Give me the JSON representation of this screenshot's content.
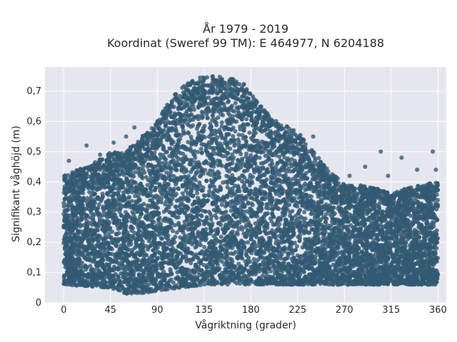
{
  "chart_data": {
    "type": "scatter",
    "title": "År 1979 - 2019",
    "subtitle": "Koordinat (Sweref 99 TM): E 464977, N 6204188",
    "xlabel": "Vågriktning (grader)",
    "ylabel": "Signifikant våghöjd (m)",
    "xlim": [
      -18,
      368
    ],
    "ylim": [
      0,
      0.78
    ],
    "x_ticks": [
      0,
      45,
      90,
      135,
      180,
      225,
      270,
      315,
      360
    ],
    "x_tick_labels": [
      "0",
      "45",
      "90",
      "135",
      "180",
      "225",
      "270",
      "315",
      "360"
    ],
    "y_ticks": [
      0,
      0.1,
      0.2,
      0.3,
      0.4,
      0.5,
      0.6,
      0.7
    ],
    "y_tick_labels": [
      "0",
      "0,1",
      "0,2",
      "0,3",
      "0,4",
      "0,5",
      "0,6",
      "0,7"
    ],
    "grid": true,
    "point_color": "#335a73",
    "background_color": "#e5e6ee",
    "series": [
      {
        "envelope_upper": [
          [
            0,
            0.42
          ],
          [
            20,
            0.45
          ],
          [
            45,
            0.5
          ],
          [
            60,
            0.5
          ],
          [
            75,
            0.55
          ],
          [
            90,
            0.6
          ],
          [
            100,
            0.66
          ],
          [
            110,
            0.7
          ],
          [
            120,
            0.73
          ],
          [
            135,
            0.75
          ],
          [
            150,
            0.75
          ],
          [
            165,
            0.74
          ],
          [
            175,
            0.72
          ],
          [
            185,
            0.67
          ],
          [
            195,
            0.63
          ],
          [
            210,
            0.59
          ],
          [
            225,
            0.57
          ],
          [
            240,
            0.5
          ],
          [
            255,
            0.44
          ],
          [
            270,
            0.39
          ],
          [
            285,
            0.39
          ],
          [
            300,
            0.38
          ],
          [
            315,
            0.36
          ],
          [
            330,
            0.38
          ],
          [
            345,
            0.39
          ],
          [
            360,
            0.4
          ]
        ],
        "envelope_lower": [
          [
            0,
            0.06
          ],
          [
            45,
            0.05
          ],
          [
            60,
            0.03
          ],
          [
            75,
            0.03
          ],
          [
            90,
            0.04
          ],
          [
            135,
            0.06
          ],
          [
            180,
            0.06
          ],
          [
            225,
            0.06
          ],
          [
            270,
            0.06
          ],
          [
            315,
            0.06
          ],
          [
            360,
            0.06
          ]
        ],
        "outliers": [
          [
            5,
            0.47
          ],
          [
            22,
            0.52
          ],
          [
            35,
            0.49
          ],
          [
            48,
            0.53
          ],
          [
            60,
            0.55
          ],
          [
            68,
            0.58
          ],
          [
            305,
            0.5
          ],
          [
            312,
            0.42
          ],
          [
            325,
            0.48
          ],
          [
            340,
            0.44
          ],
          [
            355,
            0.5
          ],
          [
            358,
            0.44
          ],
          [
            290,
            0.45
          ],
          [
            275,
            0.42
          ],
          [
            240,
            0.55
          ]
        ]
      }
    ]
  }
}
